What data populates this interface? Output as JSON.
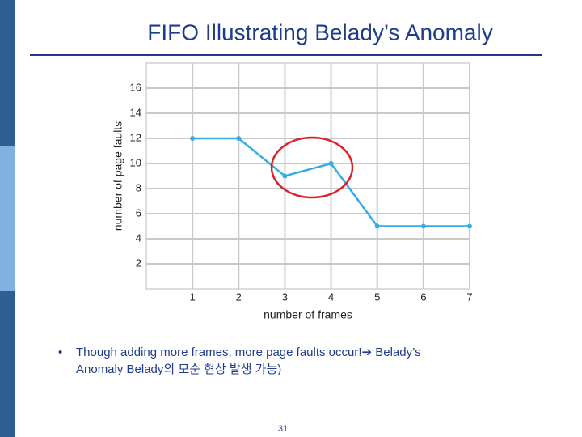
{
  "chart_data": {
    "type": "line",
    "title": "FIFO Illustrating Belady’s Anomaly",
    "x_label": "number of frames",
    "y_label": "number of page faults",
    "x": [
      1,
      2,
      3,
      4,
      5,
      6,
      7
    ],
    "values": [
      12,
      12,
      9,
      10,
      5,
      5,
      5
    ],
    "color": "#35ace3",
    "xlim": [
      0,
      7
    ],
    "xticks": [
      1,
      2,
      3,
      4,
      5,
      6,
      7
    ],
    "ylim": [
      0,
      18
    ],
    "yticks": [
      2,
      4,
      6,
      8,
      10,
      12,
      14,
      16
    ],
    "grid": true
  },
  "bullet": {
    "lines": [
      "Though adding more frames, more page faults occur!➔ Belady’s",
      "Anomaly Belady의 모순 현상 발생 가능)"
    ]
  },
  "page_number": "31"
}
